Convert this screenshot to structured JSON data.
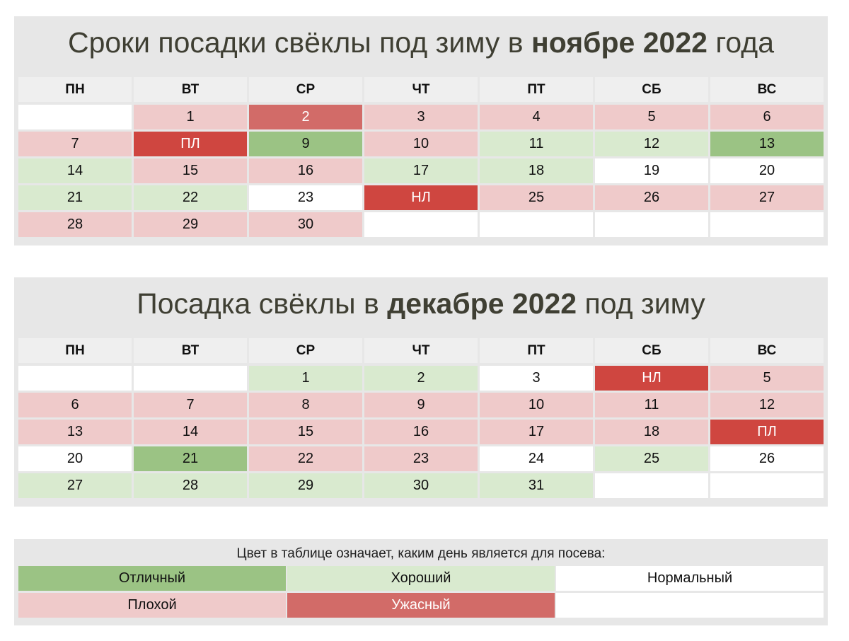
{
  "weekdays": [
    "ПН",
    "ВТ",
    "СР",
    "ЧТ",
    "ПТ",
    "СБ",
    "ВС"
  ],
  "november": {
    "title_pre": "Сроки посадки свёклы под зиму в ",
    "title_bold": "ноябре 2022",
    "title_post": " года",
    "rows": [
      [
        {
          "t": "",
          "s": "empty"
        },
        {
          "t": "1",
          "s": "bad"
        },
        {
          "t": "2",
          "s": "terrible"
        },
        {
          "t": "3",
          "s": "bad"
        },
        {
          "t": "4",
          "s": "bad"
        },
        {
          "t": "5",
          "s": "bad"
        },
        {
          "t": "6",
          "s": "bad"
        }
      ],
      [
        {
          "t": "7",
          "s": "bad"
        },
        {
          "t": "ПЛ",
          "s": "worst"
        },
        {
          "t": "9",
          "s": "excellent"
        },
        {
          "t": "10",
          "s": "bad"
        },
        {
          "t": "11",
          "s": "good"
        },
        {
          "t": "12",
          "s": "good"
        },
        {
          "t": "13",
          "s": "excellent"
        }
      ],
      [
        {
          "t": "14",
          "s": "good"
        },
        {
          "t": "15",
          "s": "bad"
        },
        {
          "t": "16",
          "s": "bad"
        },
        {
          "t": "17",
          "s": "good"
        },
        {
          "t": "18",
          "s": "good"
        },
        {
          "t": "19",
          "s": "normal"
        },
        {
          "t": "20",
          "s": "normal"
        }
      ],
      [
        {
          "t": "21",
          "s": "good"
        },
        {
          "t": "22",
          "s": "good"
        },
        {
          "t": "23",
          "s": "normal"
        },
        {
          "t": "НЛ",
          "s": "worst"
        },
        {
          "t": "25",
          "s": "bad"
        },
        {
          "t": "26",
          "s": "bad"
        },
        {
          "t": "27",
          "s": "bad"
        }
      ],
      [
        {
          "t": "28",
          "s": "bad"
        },
        {
          "t": "29",
          "s": "bad"
        },
        {
          "t": "30",
          "s": "bad"
        },
        {
          "t": "",
          "s": "empty"
        },
        {
          "t": "",
          "s": "empty"
        },
        {
          "t": "",
          "s": "empty"
        },
        {
          "t": "",
          "s": "empty"
        }
      ]
    ]
  },
  "december": {
    "title_pre": "Посадка свёклы в ",
    "title_bold": "декабре 2022",
    "title_post": " под зиму",
    "rows": [
      [
        {
          "t": "",
          "s": "empty"
        },
        {
          "t": "",
          "s": "empty"
        },
        {
          "t": "1",
          "s": "good"
        },
        {
          "t": "2",
          "s": "good"
        },
        {
          "t": "3",
          "s": "normal"
        },
        {
          "t": "НЛ",
          "s": "worst"
        },
        {
          "t": "5",
          "s": "bad"
        }
      ],
      [
        {
          "t": "6",
          "s": "bad"
        },
        {
          "t": "7",
          "s": "bad"
        },
        {
          "t": "8",
          "s": "bad"
        },
        {
          "t": "9",
          "s": "bad"
        },
        {
          "t": "10",
          "s": "bad"
        },
        {
          "t": "11",
          "s": "bad"
        },
        {
          "t": "12",
          "s": "bad"
        }
      ],
      [
        {
          "t": "13",
          "s": "bad"
        },
        {
          "t": "14",
          "s": "bad"
        },
        {
          "t": "15",
          "s": "bad"
        },
        {
          "t": "16",
          "s": "bad"
        },
        {
          "t": "17",
          "s": "bad"
        },
        {
          "t": "18",
          "s": "bad"
        },
        {
          "t": "ПЛ",
          "s": "worst"
        }
      ],
      [
        {
          "t": "20",
          "s": "normal"
        },
        {
          "t": "21",
          "s": "excellent"
        },
        {
          "t": "22",
          "s": "bad"
        },
        {
          "t": "23",
          "s": "bad"
        },
        {
          "t": "24",
          "s": "normal"
        },
        {
          "t": "25",
          "s": "good"
        },
        {
          "t": "26",
          "s": "normal"
        }
      ],
      [
        {
          "t": "27",
          "s": "good"
        },
        {
          "t": "28",
          "s": "good"
        },
        {
          "t": "29",
          "s": "good"
        },
        {
          "t": "30",
          "s": "good"
        },
        {
          "t": "31",
          "s": "good"
        },
        {
          "t": "",
          "s": "empty"
        },
        {
          "t": "",
          "s": "empty"
        }
      ]
    ]
  },
  "legend": {
    "title": "Цвет в таблице означает, каким день является для посева:",
    "items": [
      {
        "t": "Отличный",
        "s": "excellent"
      },
      {
        "t": "Хороший",
        "s": "good"
      },
      {
        "t": "Нормальный",
        "s": "normal"
      },
      {
        "t": "Плохой",
        "s": "bad"
      },
      {
        "t": "Ужасный",
        "s": "terrible"
      },
      {
        "t": "",
        "s": "empty"
      }
    ]
  },
  "colors": {
    "excellent": "#9bc384",
    "good": "#d9eacf",
    "normal": "#ffffff",
    "bad": "#efcaca",
    "terrible": "#d26b68",
    "worst": "#cf4640"
  }
}
